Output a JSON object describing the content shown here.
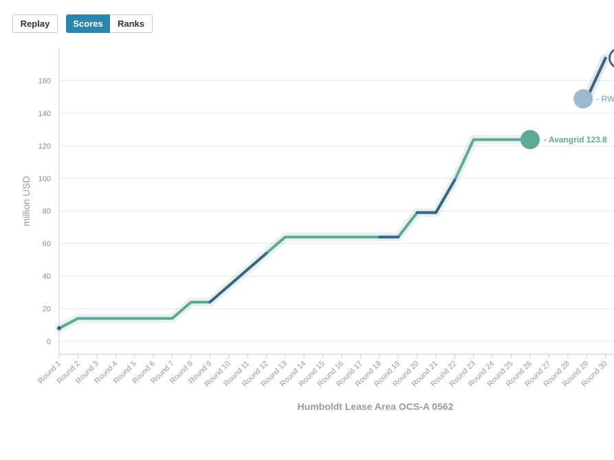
{
  "toolbar": {
    "replay_label": "Replay",
    "scores_label": "Scores",
    "ranks_label": "Ranks",
    "active_mode": "Scores"
  },
  "colors": {
    "accent": "#2b87b0",
    "grid": "#e8e8e8",
    "axis": "#cccccc",
    "text_muted": "#9a9a9a"
  },
  "chart_data": {
    "type": "line",
    "title": "",
    "xlabel": "Humboldt Lease Area OCS-A 0562",
    "ylabel": "million USD",
    "ylim": [
      -8,
      180
    ],
    "yticks": [
      0,
      20,
      40,
      60,
      80,
      100,
      120,
      140,
      160
    ],
    "grid": true,
    "legend": "end-labels",
    "categories": [
      "Round 1",
      "Round 2",
      "Round 3",
      "Round 4",
      "Round 5",
      "Round 6",
      "Round 7",
      "Round 8",
      "Round 9",
      "Round 10",
      "Round 11",
      "Round 12",
      "Round 13",
      "Round 14",
      "Round 15",
      "Round 16",
      "Round 17",
      "Round 18",
      "Round 19",
      "Round 20",
      "Round 21",
      "Round 22",
      "Round 23",
      "Round 24",
      "Round 25",
      "Round 26",
      "Round 27",
      "Round 28",
      "Round 29",
      "Round 30"
    ],
    "series": [
      {
        "name": "Avangrid",
        "end_label": "- Avangrid 123.8",
        "color": "#5fa897",
        "dot_color": "#5fa897",
        "values": [
          8,
          14,
          14,
          14,
          14,
          14,
          14,
          24,
          24,
          34,
          44,
          54,
          64,
          64,
          64,
          64,
          64,
          64,
          64,
          79,
          79,
          99,
          123.8,
          123.8,
          123.8,
          123.8,
          null,
          null,
          null,
          null
        ],
        "dark_rounds": [
          1,
          10,
          11,
          12,
          19,
          21,
          22
        ]
      },
      {
        "name": "RWE",
        "end_label": "- RW",
        "color": "#3d6585",
        "dot_color": "#9bbad0",
        "label_color": "#9bbad0",
        "values": [
          null,
          null,
          null,
          null,
          null,
          null,
          null,
          null,
          null,
          null,
          null,
          null,
          null,
          null,
          null,
          null,
          null,
          null,
          null,
          null,
          null,
          null,
          null,
          null,
          null,
          null,
          null,
          null,
          148.8,
          173.8
        ],
        "dark_rounds": [
          29,
          30
        ]
      }
    ]
  }
}
